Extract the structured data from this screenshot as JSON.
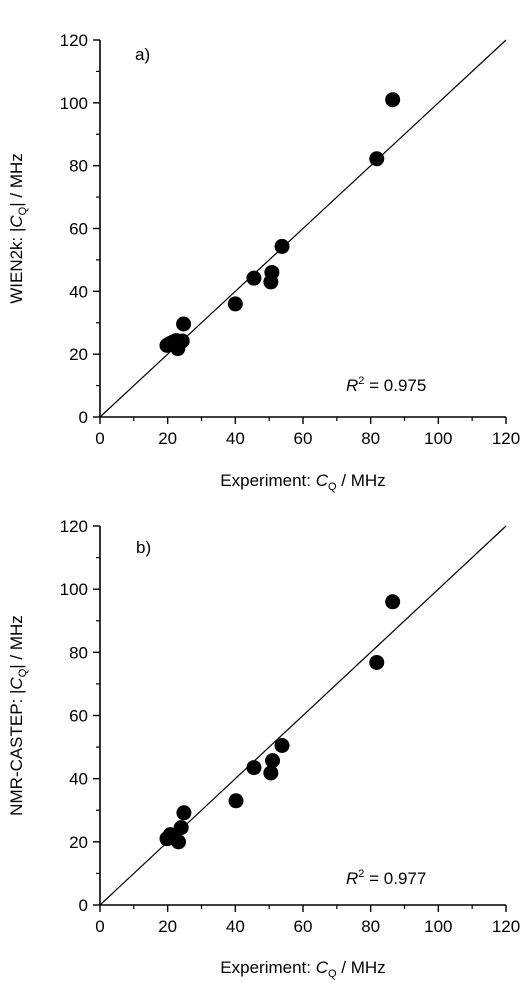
{
  "chart_data": [
    {
      "type": "scatter",
      "panel_label": "a)",
      "xlabel_prefix": "Experiment: ",
      "xlabel_var": "C",
      "xlabel_sub": "Q",
      "xlabel_suffix": " / MHz",
      "ylabel_prefix": "WIEN2k: |",
      "ylabel_var": "C",
      "ylabel_sub": "Q",
      "ylabel_suffix": "| / MHz",
      "xlim": [
        0,
        120
      ],
      "ylim": [
        0,
        120
      ],
      "xticks": [
        0,
        20,
        40,
        60,
        80,
        100,
        120
      ],
      "yticks": [
        0,
        20,
        40,
        60,
        80,
        100,
        120
      ],
      "xtick_labels": [
        "0",
        "20",
        "40",
        "60",
        "80",
        "100",
        "120"
      ],
      "ytick_labels": [
        "0",
        "20",
        "40",
        "60",
        "80",
        "100",
        "120"
      ],
      "r2_var": "R",
      "r2_sup": "2",
      "r2_value": " = 0.975",
      "reference_line": [
        [
          0,
          0
        ],
        [
          120,
          120
        ]
      ],
      "points": [
        {
          "x": 19.8,
          "y": 22.8
        },
        {
          "x": 20.5,
          "y": 23.3
        },
        {
          "x": 21.5,
          "y": 23.8
        },
        {
          "x": 22.5,
          "y": 24.3
        },
        {
          "x": 23.0,
          "y": 21.8
        },
        {
          "x": 24.3,
          "y": 24.2
        },
        {
          "x": 24.7,
          "y": 29.6
        },
        {
          "x": 40.0,
          "y": 36.0
        },
        {
          "x": 45.5,
          "y": 44.2
        },
        {
          "x": 50.5,
          "y": 43.0
        },
        {
          "x": 50.8,
          "y": 46.0
        },
        {
          "x": 53.8,
          "y": 54.3
        },
        {
          "x": 81.8,
          "y": 82.2
        },
        {
          "x": 86.5,
          "y": 101.0
        }
      ]
    },
    {
      "type": "scatter",
      "panel_label": "b)",
      "xlabel_prefix": "Experiment: ",
      "xlabel_var": "C",
      "xlabel_sub": "Q",
      "xlabel_suffix": " / MHz",
      "ylabel_prefix": "NMR-CASTEP: |",
      "ylabel_var": "C",
      "ylabel_sub": "Q",
      "ylabel_suffix": "| / MHz",
      "xlim": [
        0,
        120
      ],
      "ylim": [
        0,
        120
      ],
      "xticks": [
        0,
        20,
        40,
        60,
        80,
        100,
        120
      ],
      "yticks": [
        0,
        20,
        40,
        60,
        80,
        100,
        120
      ],
      "xtick_labels": [
        "0",
        "20",
        "40",
        "60",
        "80",
        "100",
        "120"
      ],
      "ytick_labels": [
        "0",
        "20",
        "40",
        "60",
        "80",
        "100",
        "120"
      ],
      "r2_var": "R",
      "r2_sup": "2",
      "r2_value": " = 0.977",
      "reference_line": [
        [
          0,
          0
        ],
        [
          120,
          120
        ]
      ],
      "points": [
        {
          "x": 19.8,
          "y": 21.0
        },
        {
          "x": 20.8,
          "y": 22.3
        },
        {
          "x": 21.8,
          "y": 21.3
        },
        {
          "x": 23.2,
          "y": 20.0
        },
        {
          "x": 24.0,
          "y": 24.5
        },
        {
          "x": 24.8,
          "y": 29.2
        },
        {
          "x": 40.2,
          "y": 33.0
        },
        {
          "x": 45.5,
          "y": 43.5
        },
        {
          "x": 50.5,
          "y": 41.8
        },
        {
          "x": 51.0,
          "y": 45.7
        },
        {
          "x": 53.8,
          "y": 50.5
        },
        {
          "x": 81.8,
          "y": 76.8
        },
        {
          "x": 86.5,
          "y": 96.0
        }
      ]
    }
  ]
}
